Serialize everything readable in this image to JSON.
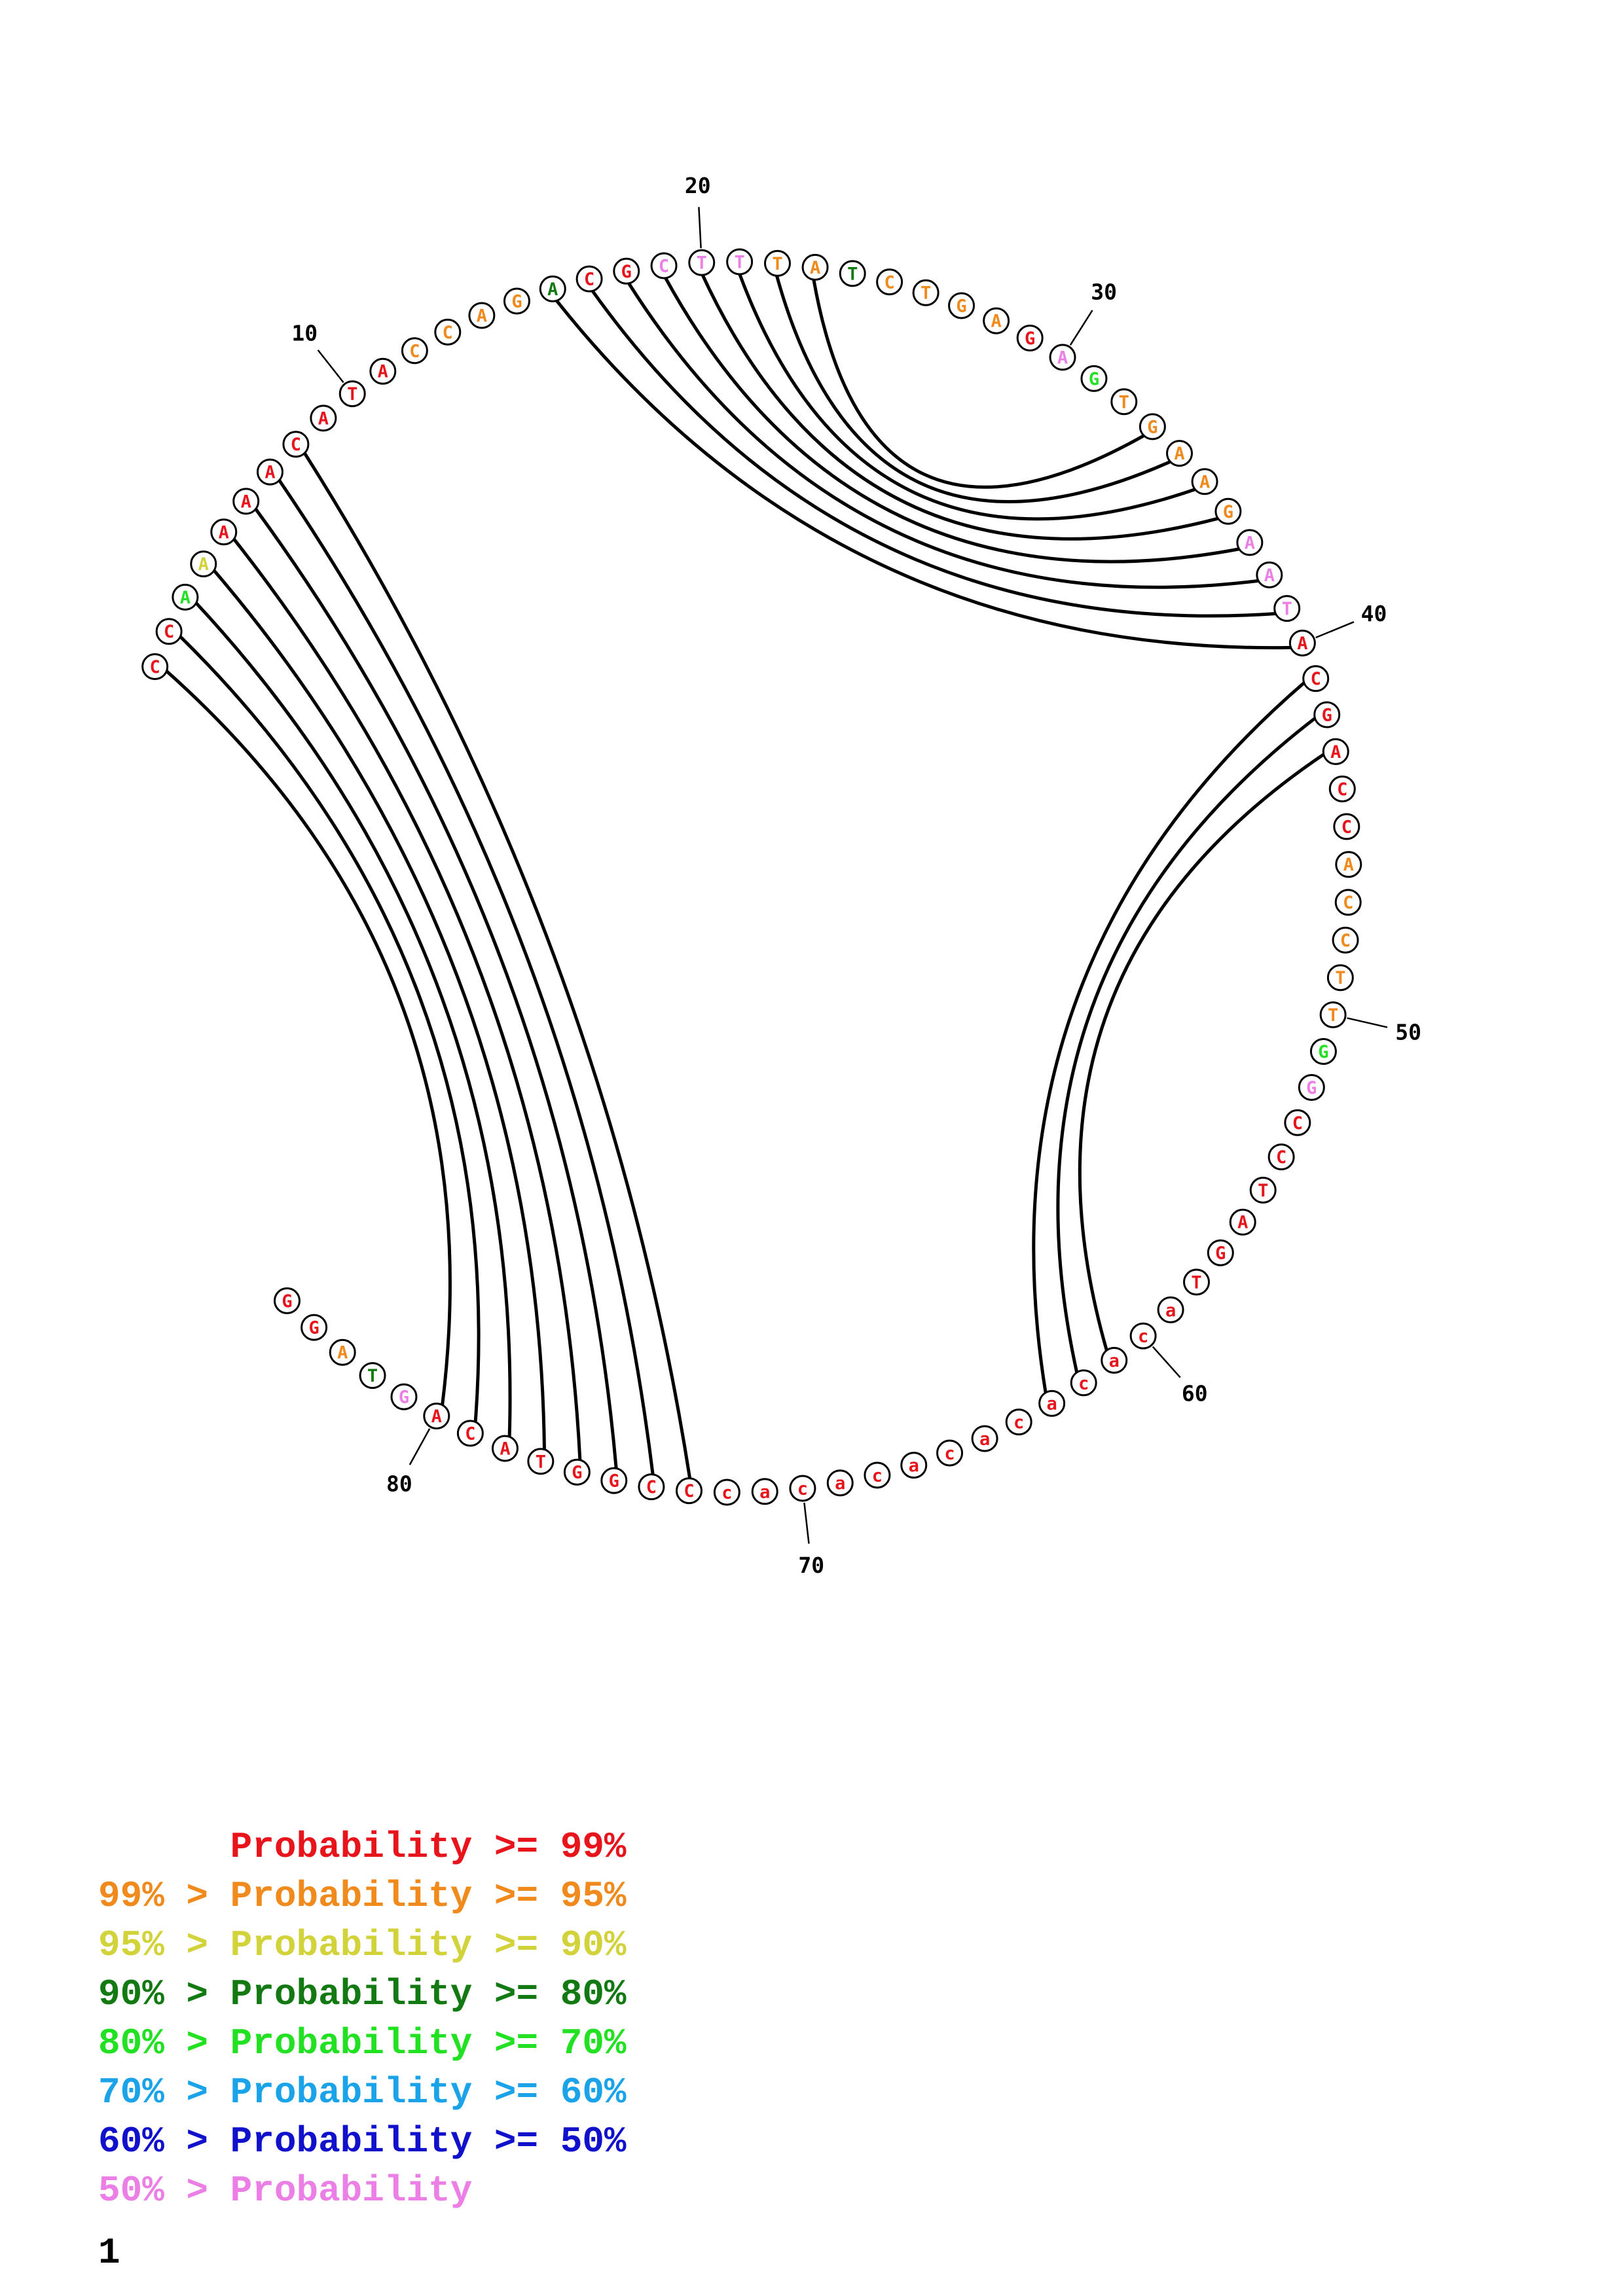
{
  "sequence": [
    "C",
    "C",
    "A",
    "A",
    "A",
    "A",
    "A",
    "C",
    "A",
    "T",
    "A",
    "C",
    "C",
    "A",
    "G",
    "A",
    "C",
    "G",
    "C",
    "T",
    "T",
    "T",
    "A",
    "T",
    "C",
    "T",
    "G",
    "A",
    "G",
    "A",
    "G",
    "T",
    "G",
    "A",
    "A",
    "G",
    "A",
    "A",
    "T",
    "A",
    "C",
    "G",
    "A",
    "C",
    "C",
    "A",
    "C",
    "C",
    "T",
    "T",
    "G",
    "G",
    "C",
    "C",
    "T",
    "A",
    "G",
    "T",
    "a",
    "c",
    "a",
    "c",
    "a",
    "c",
    "a",
    "c",
    "a",
    "c",
    "a",
    "c",
    "a",
    "c",
    "C",
    "C",
    "G",
    "G",
    "T",
    "A",
    "C",
    "A",
    "G",
    "T",
    "A",
    "G",
    "G"
  ],
  "probability_colors": [
    "red",
    "red",
    "lightgreen",
    "yellow",
    "red",
    "red",
    "red",
    "red",
    "red",
    "red",
    "red",
    "orange",
    "orange",
    "orange",
    "orange",
    "darkgreen",
    "red",
    "red",
    "pink",
    "pink",
    "pink",
    "orange",
    "orange",
    "darkgreen",
    "orange",
    "orange",
    "orange",
    "orange",
    "red",
    "pink",
    "lightgreen",
    "orange",
    "orange",
    "orange",
    "orange",
    "orange",
    "pink",
    "pink",
    "pink",
    "red",
    "red",
    "red",
    "red",
    "red",
    "red",
    "orange",
    "orange",
    "orange",
    "orange",
    "orange",
    "lightgreen",
    "pink",
    "red",
    "red",
    "red",
    "red",
    "red",
    "red",
    "red",
    "red",
    "red",
    "red",
    "red",
    "red",
    "red",
    "red",
    "red",
    "red",
    "red",
    "red",
    "red",
    "red",
    "red",
    "red",
    "red",
    "red",
    "red",
    "red",
    "red",
    "red",
    "pink",
    "darkgreen",
    "orange",
    "red",
    "red"
  ],
  "palette": {
    "red": "#e8141b",
    "orange": "#f08a1c",
    "yellow": "#d2d23a",
    "darkgreen": "#137a13",
    "lightgreen": "#22e122",
    "pink": "#ec7fe6",
    "black": "#000000"
  },
  "position_labels": [
    "10",
    "20",
    "30",
    "40",
    "50",
    "60",
    "70",
    "80"
  ],
  "pairs": [
    [
      1,
      80
    ],
    [
      2,
      79
    ],
    [
      3,
      78
    ],
    [
      4,
      77
    ],
    [
      5,
      76
    ],
    [
      6,
      75
    ],
    [
      7,
      74
    ],
    [
      8,
      73
    ],
    [
      16,
      40
    ],
    [
      17,
      39
    ],
    [
      18,
      38
    ],
    [
      19,
      37
    ],
    [
      20,
      36
    ],
    [
      21,
      35
    ],
    [
      22,
      34
    ],
    [
      23,
      33
    ],
    [
      41,
      63
    ],
    [
      42,
      62
    ],
    [
      43,
      61
    ]
  ],
  "legend": [
    {
      "prefix": "",
      "label": "Probability >= 99%",
      "color": "#e8141b"
    },
    {
      "prefix": "99% > ",
      "label": "Probability >= 95%",
      "color": "#f08a1c"
    },
    {
      "prefix": "95% > ",
      "label": "Probability >= 90%",
      "color": "#d2d23a"
    },
    {
      "prefix": "90% > ",
      "label": "Probability >= 80%",
      "color": "#137a13"
    },
    {
      "prefix": "80% > ",
      "label": "Probability >= 70%",
      "color": "#22e122"
    },
    {
      "prefix": "70% > ",
      "label": "Probability >= 60%",
      "color": "#1aa3e8"
    },
    {
      "prefix": "60% > ",
      "label": "Probability >= 50%",
      "color": "#1111cc"
    },
    {
      "prefix": "50% > ",
      "label": "Probability",
      "color": "#ec7fe6"
    }
  ],
  "page_number": "1"
}
